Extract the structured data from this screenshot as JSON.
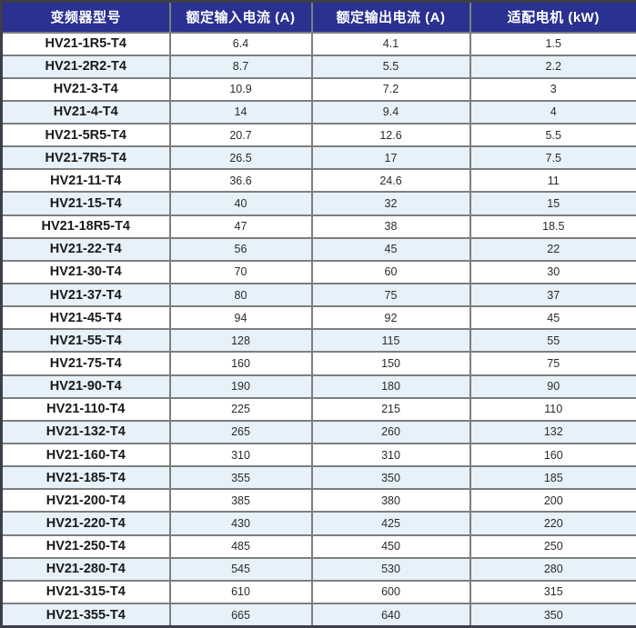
{
  "table": {
    "columns": [
      "变频器型号",
      "额定输入电流 (A)",
      "额定输出电流 (A)",
      "适配电机 (kW)"
    ],
    "rows": [
      [
        "HV21-1R5-T4",
        "6.4",
        "4.1",
        "1.5"
      ],
      [
        "HV21-2R2-T4",
        "8.7",
        "5.5",
        "2.2"
      ],
      [
        "HV21-3-T4",
        "10.9",
        "7.2",
        "3"
      ],
      [
        "HV21-4-T4",
        "14",
        "9.4",
        "4"
      ],
      [
        "HV21-5R5-T4",
        "20.7",
        "12.6",
        "5.5"
      ],
      [
        "HV21-7R5-T4",
        "26.5",
        "17",
        "7.5"
      ],
      [
        "HV21-11-T4",
        "36.6",
        "24.6",
        "11"
      ],
      [
        "HV21-15-T4",
        "40",
        "32",
        "15"
      ],
      [
        "HV21-18R5-T4",
        "47",
        "38",
        "18.5"
      ],
      [
        "HV21-22-T4",
        "56",
        "45",
        "22"
      ],
      [
        "HV21-30-T4",
        "70",
        "60",
        "30"
      ],
      [
        "HV21-37-T4",
        "80",
        "75",
        "37"
      ],
      [
        "HV21-45-T4",
        "94",
        "92",
        "45"
      ],
      [
        "HV21-55-T4",
        "128",
        "115",
        "55"
      ],
      [
        "HV21-75-T4",
        "160",
        "150",
        "75"
      ],
      [
        "HV21-90-T4",
        "190",
        "180",
        "90"
      ],
      [
        "HV21-110-T4",
        "225",
        "215",
        "110"
      ],
      [
        "HV21-132-T4",
        "265",
        "260",
        "132"
      ],
      [
        "HV21-160-T4",
        "310",
        "310",
        "160"
      ],
      [
        "HV21-185-T4",
        "355",
        "350",
        "185"
      ],
      [
        "HV21-200-T4",
        "385",
        "380",
        "200"
      ],
      [
        "HV21-220-T4",
        "430",
        "425",
        "220"
      ],
      [
        "HV21-250-T4",
        "485",
        "450",
        "250"
      ],
      [
        "HV21-280-T4",
        "545",
        "530",
        "280"
      ],
      [
        "HV21-315-T4",
        "610",
        "600",
        "315"
      ],
      [
        "HV21-355-T4",
        "665",
        "640",
        "350"
      ]
    ]
  },
  "colors": {
    "header_bg": "#2a3190",
    "header_text": "#ffffff",
    "alt_row_bg": "#e6f1f9",
    "grid": "#7e7e7e",
    "outer_border": "#3c3f4a"
  }
}
